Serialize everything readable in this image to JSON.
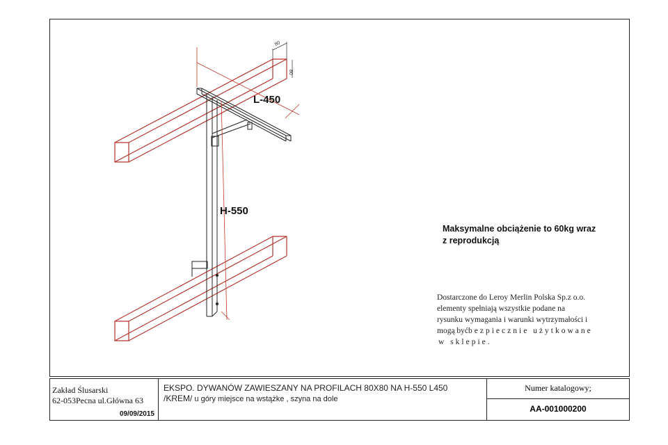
{
  "drawing": {
    "dim_length": "L-450",
    "dim_height": "H-550",
    "profile_w": "80",
    "profile_h": "80",
    "colors": {
      "profile": "#b5332b",
      "line": "#222222",
      "dim": "#c0392b"
    }
  },
  "notes": {
    "load_line1": "Maksymalne obciążenie to 60kg wraz",
    "load_line2": "z reprodukcją",
    "supply_line1": "Dostarczone do Leroy Merlin Polska Sp.z o.o.",
    "supply_line2": "elementy spełniają wszystkie podane na",
    "supply_line3": "rysunku wymagania i warunki wytrzymałości i",
    "supply_line4a": "mogą być",
    "supply_line4b": "bezpiecznie użytkowane",
    "supply_line5": "w sklepie."
  },
  "titleblock": {
    "company_line1": "Zakład Ślusarski",
    "company_line2": "62-053Pecna ul.Główna 63",
    "date": "09/09/2015",
    "desc_line1": "EKSPO. DYWANÓW ZAWIESZANY NA PROFILACH 80X80 NA H-550  L450",
    "desc_line2a": "/KREM/",
    "desc_line2b": "  u góry miejsce na wstążke , szyna na dole",
    "catalog_label": "Numer katalogowy;",
    "catalog_number": "AA-001000200"
  }
}
